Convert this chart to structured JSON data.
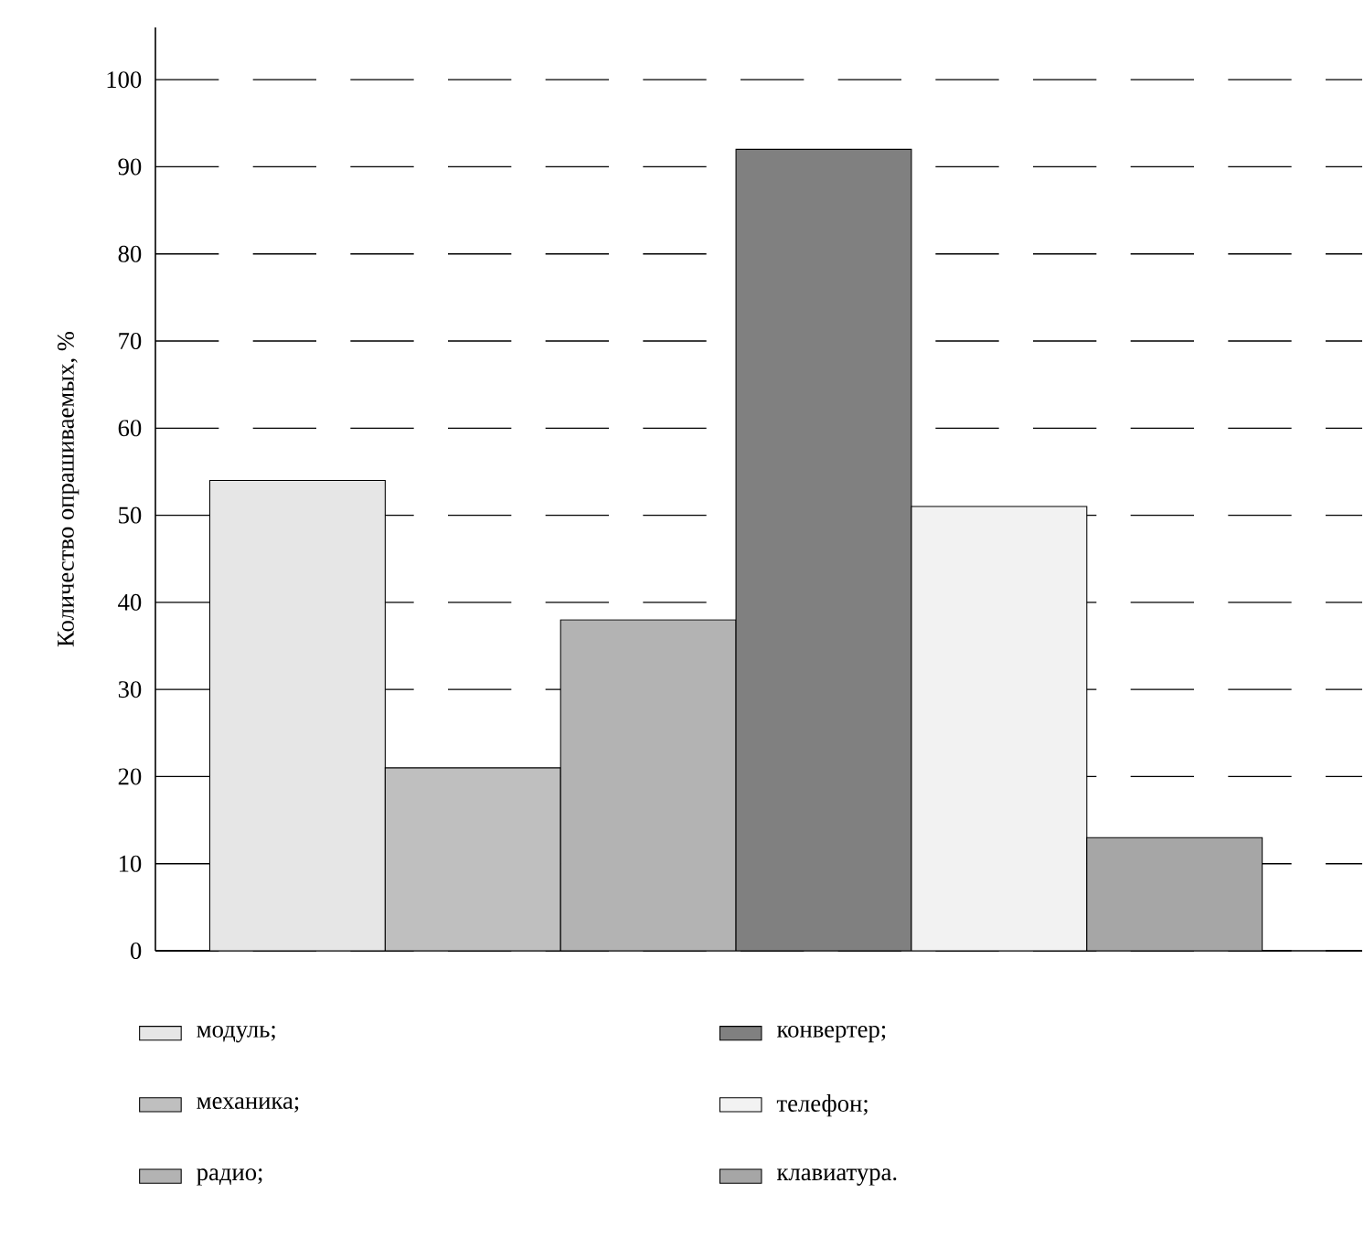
{
  "chart_data": {
    "type": "bar",
    "ylabel": "Количество опрашиваемых, %",
    "categories": [
      null,
      null,
      null,
      null,
      null,
      null
    ],
    "series": [
      {
        "name": "модуль;",
        "color": "#e6e6e6",
        "values": [
          54,
          null,
          null,
          null,
          null,
          null
        ]
      },
      {
        "name": "механика;",
        "color": "#bfbfbf",
        "values": [
          null,
          21,
          null,
          null,
          null,
          null
        ]
      },
      {
        "name": "радио;",
        "color": "#b3b3b3",
        "values": [
          null,
          null,
          38,
          null,
          null,
          null
        ]
      },
      {
        "name": "конвертер;",
        "color": "#808080",
        "values": [
          null,
          null,
          null,
          92,
          null,
          null
        ]
      },
      {
        "name": "телефон;",
        "color": "#f2f2f2",
        "values": [
          null,
          null,
          null,
          null,
          51,
          null
        ]
      },
      {
        "name": "клавиатура.",
        "color": "#a6a6a6",
        "values": [
          null,
          null,
          null,
          null,
          null,
          13
        ]
      }
    ],
    "ylim": [
      0,
      106
    ],
    "yticks": [
      0,
      10,
      20,
      30,
      40,
      50,
      60,
      70,
      80,
      90,
      100
    ],
    "grid": "y",
    "legend": "bottom"
  }
}
